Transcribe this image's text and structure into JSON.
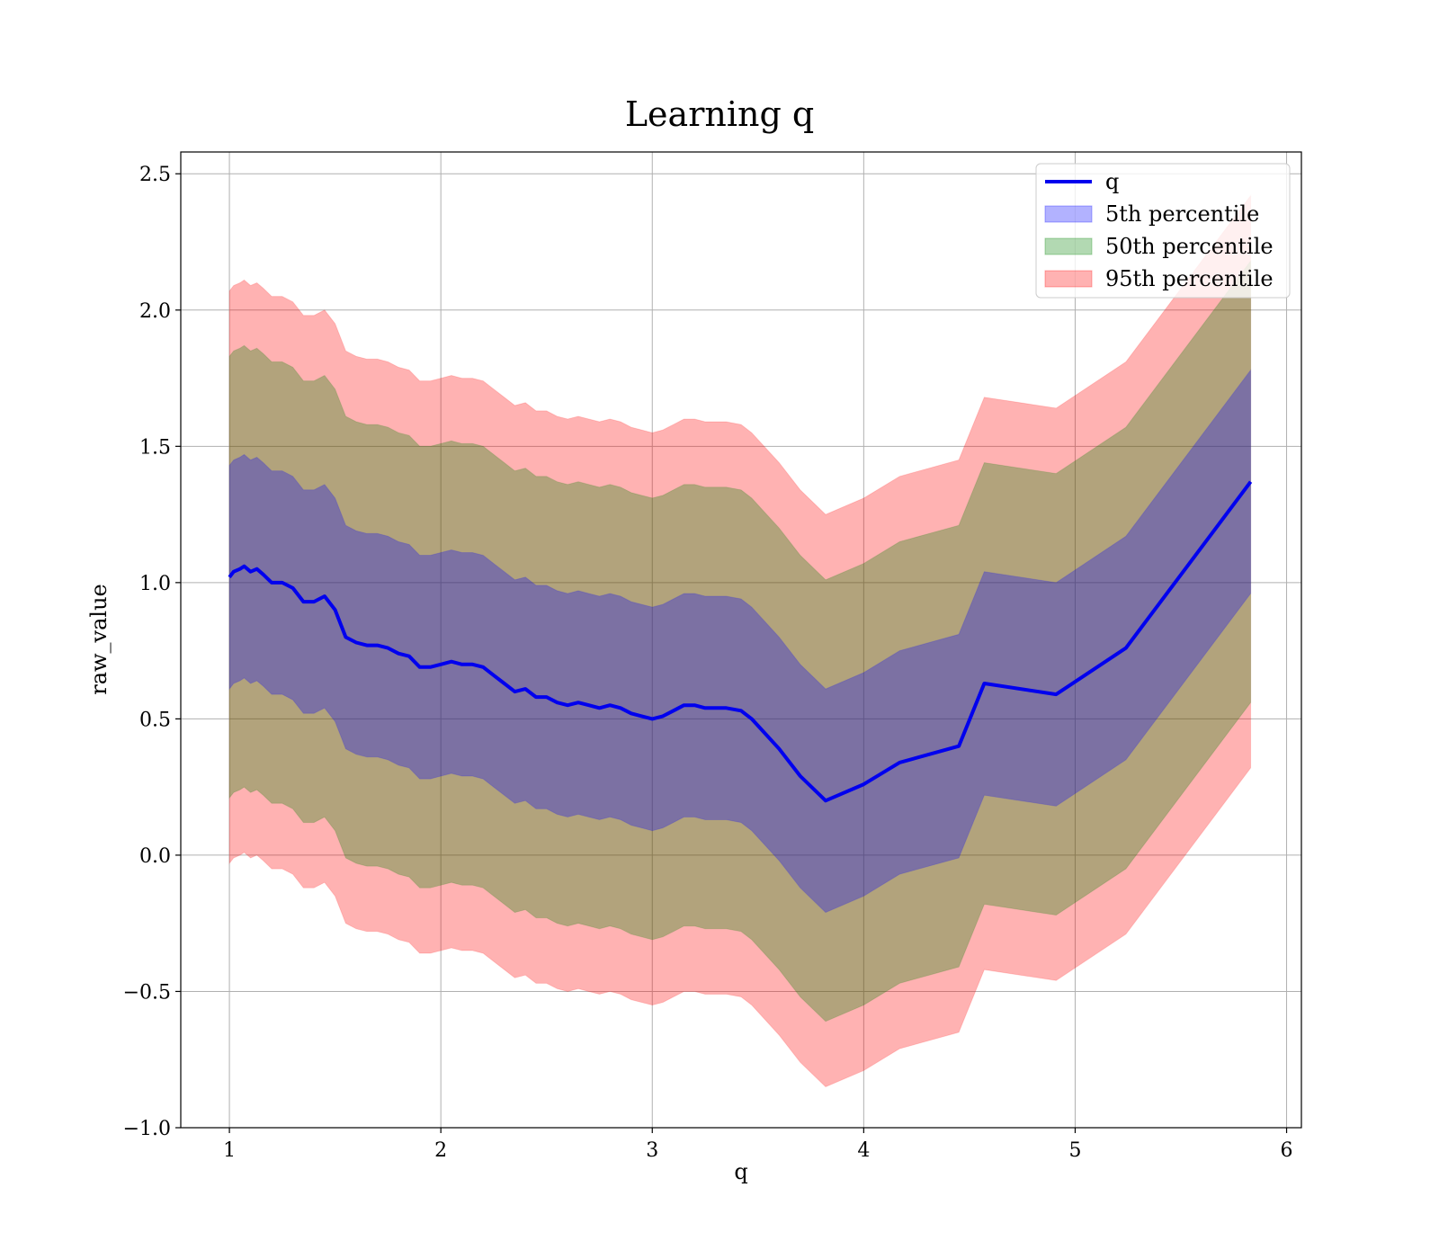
{
  "chart_data": {
    "type": "area",
    "title": "Learning q",
    "xlabel": "q",
    "ylabel": "raw_value",
    "xlim": [
      0.77,
      6.07
    ],
    "ylim": [
      -1.0,
      2.58
    ],
    "xticks": [
      1,
      2,
      3,
      4,
      5,
      6
    ],
    "yticks": [
      -1.0,
      -0.5,
      0.0,
      0.5,
      1.0,
      1.5,
      2.0,
      2.5
    ],
    "ytick_labels": [
      "−1.0",
      "−0.5",
      "0.0",
      "0.5",
      "1.0",
      "1.5",
      "2.0",
      "2.5"
    ],
    "xtick_labels": [
      "1",
      "2",
      "3",
      "4",
      "5",
      "6"
    ],
    "grid": true,
    "legend_position": "top-right",
    "x": [
      1.0,
      1.02,
      1.05,
      1.07,
      1.1,
      1.13,
      1.16,
      1.2,
      1.25,
      1.3,
      1.35,
      1.4,
      1.45,
      1.5,
      1.55,
      1.6,
      1.65,
      1.7,
      1.75,
      1.8,
      1.85,
      1.9,
      1.95,
      2.0,
      2.05,
      2.1,
      2.15,
      2.2,
      2.25,
      2.3,
      2.35,
      2.4,
      2.45,
      2.5,
      2.55,
      2.6,
      2.65,
      2.7,
      2.75,
      2.8,
      2.85,
      2.9,
      2.95,
      3.0,
      3.05,
      3.1,
      3.15,
      3.2,
      3.25,
      3.3,
      3.35,
      3.42,
      3.47,
      3.6,
      3.7,
      3.82,
      4.0,
      4.17,
      4.45,
      4.57,
      4.91,
      5.24,
      5.83
    ],
    "q_values": [
      1.02,
      1.04,
      1.05,
      1.06,
      1.04,
      1.05,
      1.03,
      1.0,
      1.0,
      0.98,
      0.93,
      0.93,
      0.95,
      0.9,
      0.8,
      0.78,
      0.77,
      0.77,
      0.76,
      0.74,
      0.73,
      0.69,
      0.69,
      0.7,
      0.71,
      0.7,
      0.7,
      0.69,
      0.66,
      0.63,
      0.6,
      0.61,
      0.58,
      0.58,
      0.56,
      0.55,
      0.56,
      0.55,
      0.54,
      0.55,
      0.54,
      0.52,
      0.51,
      0.5,
      0.51,
      0.53,
      0.55,
      0.55,
      0.54,
      0.54,
      0.54,
      0.53,
      0.5,
      0.39,
      0.29,
      0.2,
      0.26,
      0.34,
      0.4,
      0.63,
      0.59,
      0.76,
      1.37
    ],
    "series": [
      {
        "name": "q",
        "kind": "line",
        "color": "#0000ee"
      },
      {
        "name": "5th percentile",
        "kind": "band",
        "color": "#0000ff",
        "opacity": 0.3,
        "half_width": 0.41
      },
      {
        "name": "50th percentile",
        "kind": "band",
        "color": "#008000",
        "opacity": 0.3,
        "half_width": 0.81
      },
      {
        "name": "95th percentile",
        "kind": "band",
        "color": "#ff0000",
        "opacity": 0.3,
        "half_width": 1.05
      }
    ]
  }
}
